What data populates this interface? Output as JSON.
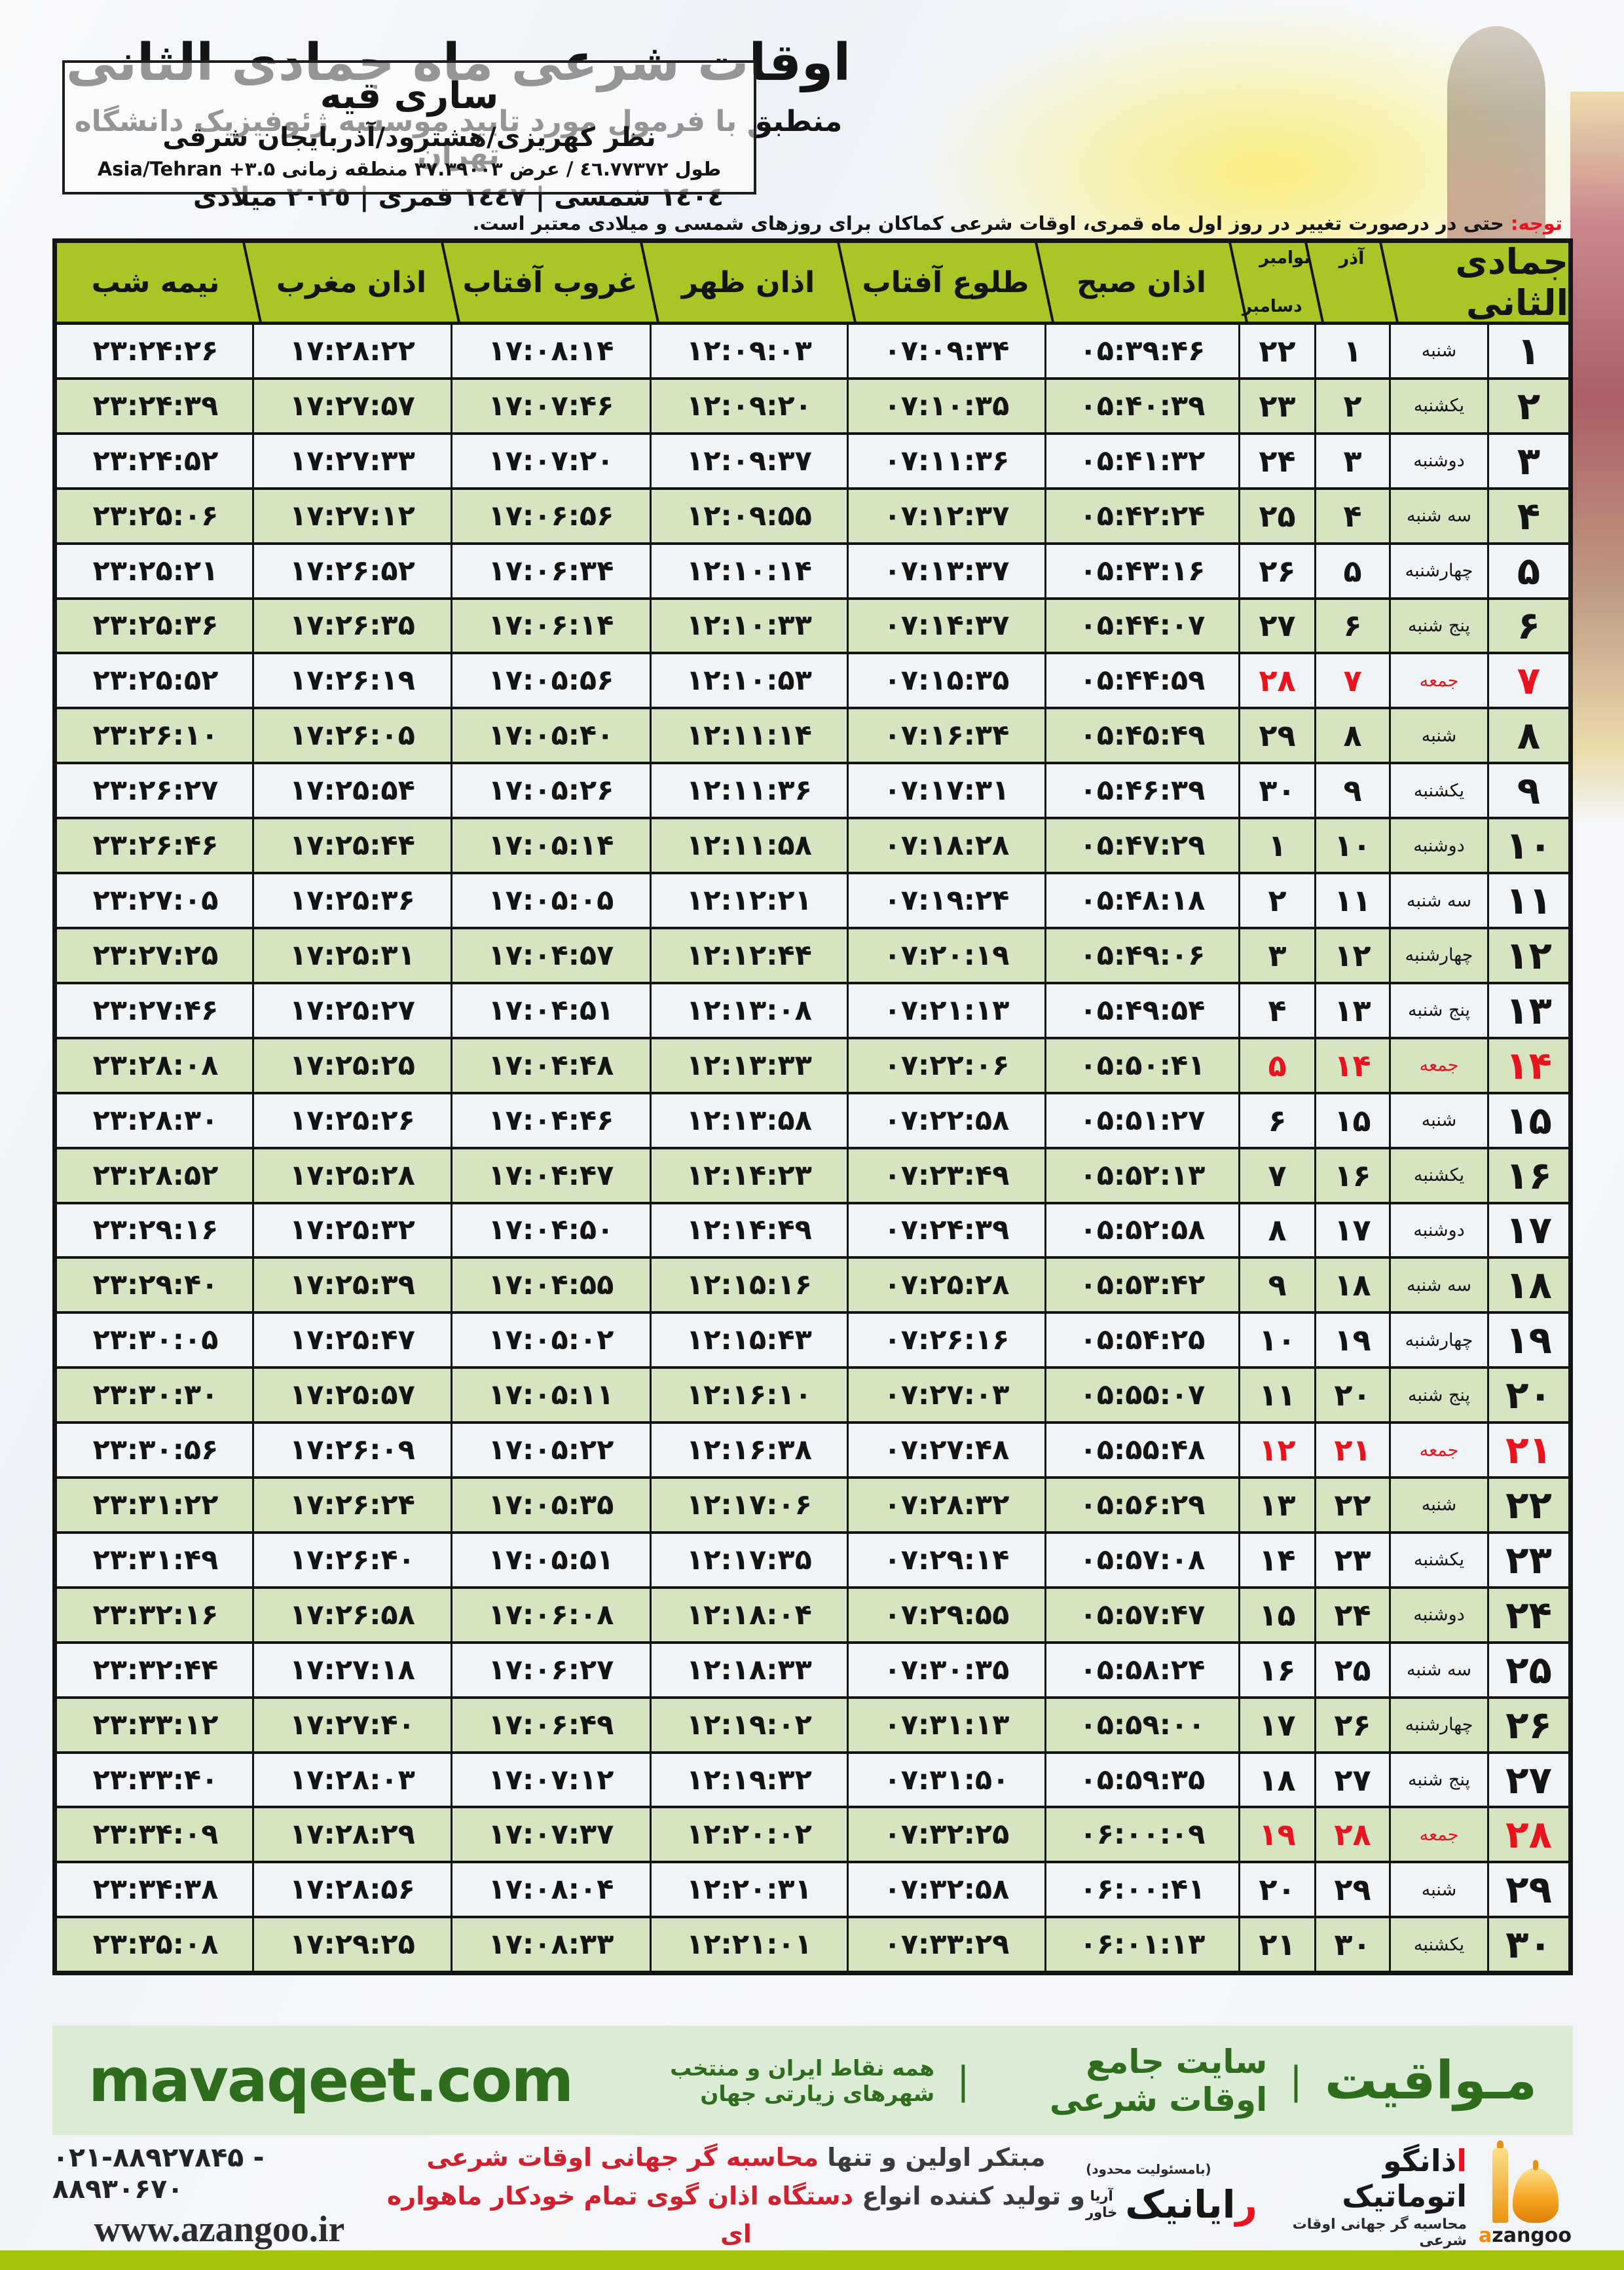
{
  "header": {
    "title": "اوقات شرعی ماه جمادی الثانی",
    "subtitle": "منطبق با فرمول مورد تایید موسسه ژئوفیزیک دانشگاه تهران",
    "date_line": "١٤٠٤ شمسی | ١٤٤٧ قمری | ٢٠٢٥ میلادی"
  },
  "location": {
    "name": "ساری قیه",
    "region": "نظر کهریزی/هشترود/آذربایجان شرقی",
    "coords": "طول ٤٦.٧٧٣٧٢ / عرض ۳۷.۳۹۰۰۳ منطقه زمانی ۳.۵+ Asia/Tehran"
  },
  "note": {
    "label": "توجه:",
    "text": "حتی در درصورت تغییر در روز اول ماه قمری، اوقات شرعی کماکان برای روزهای شمسی و میلادی معتبر است."
  },
  "table": {
    "headers": {
      "month": "جمادی الثانی",
      "azar": "آذر",
      "greg_top": "نوامبر",
      "greg_bottom": "دسامبر",
      "sobh": "اذان صبح",
      "tolu": "طلوع آفتاب",
      "zohr": "اذان ظهر",
      "ghorub": "غروب آفتاب",
      "maghreb": "اذان مغرب",
      "nimeshab": "نیمه شب"
    },
    "friday_name": "جمعه",
    "rows": [
      {
        "day": "1",
        "weekday": "شنبه",
        "azar": "1",
        "greg": "22",
        "sobh": "05:39:46",
        "tolu": "07:09:34",
        "zohr": "12:09:03",
        "ghorub": "17:08:14",
        "maghreb": "17:28:22",
        "nimeshab": "23:24:26"
      },
      {
        "day": "2",
        "weekday": "یکشنبه",
        "azar": "2",
        "greg": "23",
        "sobh": "05:40:39",
        "tolu": "07:10:35",
        "zohr": "12:09:20",
        "ghorub": "17:07:46",
        "maghreb": "17:27:57",
        "nimeshab": "23:24:39"
      },
      {
        "day": "3",
        "weekday": "دوشنبه",
        "azar": "3",
        "greg": "24",
        "sobh": "05:41:32",
        "tolu": "07:11:36",
        "zohr": "12:09:37",
        "ghorub": "17:07:20",
        "maghreb": "17:27:33",
        "nimeshab": "23:24:52"
      },
      {
        "day": "4",
        "weekday": "سه شنبه",
        "azar": "4",
        "greg": "25",
        "sobh": "05:42:24",
        "tolu": "07:12:37",
        "zohr": "12:09:55",
        "ghorub": "17:06:56",
        "maghreb": "17:27:12",
        "nimeshab": "23:25:06"
      },
      {
        "day": "5",
        "weekday": "چهارشنبه",
        "azar": "5",
        "greg": "26",
        "sobh": "05:43:16",
        "tolu": "07:13:37",
        "zohr": "12:10:14",
        "ghorub": "17:06:34",
        "maghreb": "17:26:52",
        "nimeshab": "23:25:21"
      },
      {
        "day": "6",
        "weekday": "پنج شنبه",
        "azar": "6",
        "greg": "27",
        "sobh": "05:44:07",
        "tolu": "07:14:37",
        "zohr": "12:10:33",
        "ghorub": "17:06:14",
        "maghreb": "17:26:35",
        "nimeshab": "23:25:36"
      },
      {
        "day": "7",
        "weekday": "جمعه",
        "azar": "7",
        "greg": "28",
        "sobh": "05:44:59",
        "tolu": "07:15:35",
        "zohr": "12:10:53",
        "ghorub": "17:05:56",
        "maghreb": "17:26:19",
        "nimeshab": "23:25:52"
      },
      {
        "day": "8",
        "weekday": "شنبه",
        "azar": "8",
        "greg": "29",
        "sobh": "05:45:49",
        "tolu": "07:16:34",
        "zohr": "12:11:14",
        "ghorub": "17:05:40",
        "maghreb": "17:26:05",
        "nimeshab": "23:26:10"
      },
      {
        "day": "9",
        "weekday": "یکشنبه",
        "azar": "9",
        "greg": "30",
        "sobh": "05:46:39",
        "tolu": "07:17:31",
        "zohr": "12:11:36",
        "ghorub": "17:05:26",
        "maghreb": "17:25:54",
        "nimeshab": "23:26:27"
      },
      {
        "day": "10",
        "weekday": "دوشنبه",
        "azar": "10",
        "greg": "1",
        "sobh": "05:47:29",
        "tolu": "07:18:28",
        "zohr": "12:11:58",
        "ghorub": "17:05:14",
        "maghreb": "17:25:44",
        "nimeshab": "23:26:46"
      },
      {
        "day": "11",
        "weekday": "سه شنبه",
        "azar": "11",
        "greg": "2",
        "sobh": "05:48:18",
        "tolu": "07:19:24",
        "zohr": "12:12:21",
        "ghorub": "17:05:05",
        "maghreb": "17:25:36",
        "nimeshab": "23:27:05"
      },
      {
        "day": "12",
        "weekday": "چهارشنبه",
        "azar": "12",
        "greg": "3",
        "sobh": "05:49:06",
        "tolu": "07:20:19",
        "zohr": "12:12:44",
        "ghorub": "17:04:57",
        "maghreb": "17:25:31",
        "nimeshab": "23:27:25"
      },
      {
        "day": "13",
        "weekday": "پنج شنبه",
        "azar": "13",
        "greg": "4",
        "sobh": "05:49:54",
        "tolu": "07:21:13",
        "zohr": "12:13:08",
        "ghorub": "17:04:51",
        "maghreb": "17:25:27",
        "nimeshab": "23:27:46"
      },
      {
        "day": "14",
        "weekday": "جمعه",
        "azar": "14",
        "greg": "5",
        "sobh": "05:50:41",
        "tolu": "07:22:06",
        "zohr": "12:13:33",
        "ghorub": "17:04:48",
        "maghreb": "17:25:25",
        "nimeshab": "23:28:08"
      },
      {
        "day": "15",
        "weekday": "شنبه",
        "azar": "15",
        "greg": "6",
        "sobh": "05:51:27",
        "tolu": "07:22:58",
        "zohr": "12:13:58",
        "ghorub": "17:04:46",
        "maghreb": "17:25:26",
        "nimeshab": "23:28:30"
      },
      {
        "day": "16",
        "weekday": "یکشنبه",
        "azar": "16",
        "greg": "7",
        "sobh": "05:52:13",
        "tolu": "07:23:49",
        "zohr": "12:14:23",
        "ghorub": "17:04:47",
        "maghreb": "17:25:28",
        "nimeshab": "23:28:52"
      },
      {
        "day": "17",
        "weekday": "دوشنبه",
        "azar": "17",
        "greg": "8",
        "sobh": "05:52:58",
        "tolu": "07:24:39",
        "zohr": "12:14:49",
        "ghorub": "17:04:50",
        "maghreb": "17:25:32",
        "nimeshab": "23:29:16"
      },
      {
        "day": "18",
        "weekday": "سه شنبه",
        "azar": "18",
        "greg": "9",
        "sobh": "05:53:42",
        "tolu": "07:25:28",
        "zohr": "12:15:16",
        "ghorub": "17:04:55",
        "maghreb": "17:25:39",
        "nimeshab": "23:29:40"
      },
      {
        "day": "19",
        "weekday": "چهارشنبه",
        "azar": "19",
        "greg": "10",
        "sobh": "05:54:25",
        "tolu": "07:26:16",
        "zohr": "12:15:43",
        "ghorub": "17:05:02",
        "maghreb": "17:25:47",
        "nimeshab": "23:30:05"
      },
      {
        "day": "20",
        "weekday": "پنج شنبه",
        "azar": "20",
        "greg": "11",
        "sobh": "05:55:07",
        "tolu": "07:27:03",
        "zohr": "12:16:10",
        "ghorub": "17:05:11",
        "maghreb": "17:25:57",
        "nimeshab": "23:30:30"
      },
      {
        "day": "21",
        "weekday": "جمعه",
        "azar": "21",
        "greg": "12",
        "sobh": "05:55:48",
        "tolu": "07:27:48",
        "zohr": "12:16:38",
        "ghorub": "17:05:22",
        "maghreb": "17:26:09",
        "nimeshab": "23:30:56"
      },
      {
        "day": "22",
        "weekday": "شنبه",
        "azar": "22",
        "greg": "13",
        "sobh": "05:56:29",
        "tolu": "07:28:32",
        "zohr": "12:17:06",
        "ghorub": "17:05:35",
        "maghreb": "17:26:24",
        "nimeshab": "23:31:22"
      },
      {
        "day": "23",
        "weekday": "یکشنبه",
        "azar": "23",
        "greg": "14",
        "sobh": "05:57:08",
        "tolu": "07:29:14",
        "zohr": "12:17:35",
        "ghorub": "17:05:51",
        "maghreb": "17:26:40",
        "nimeshab": "23:31:49"
      },
      {
        "day": "24",
        "weekday": "دوشنبه",
        "azar": "24",
        "greg": "15",
        "sobh": "05:57:47",
        "tolu": "07:29:55",
        "zohr": "12:18:04",
        "ghorub": "17:06:08",
        "maghreb": "17:26:58",
        "nimeshab": "23:32:16"
      },
      {
        "day": "25",
        "weekday": "سه شنبه",
        "azar": "25",
        "greg": "16",
        "sobh": "05:58:24",
        "tolu": "07:30:35",
        "zohr": "12:18:33",
        "ghorub": "17:06:27",
        "maghreb": "17:27:18",
        "nimeshab": "23:32:44"
      },
      {
        "day": "26",
        "weekday": "چهارشنبه",
        "azar": "26",
        "greg": "17",
        "sobh": "05:59:00",
        "tolu": "07:31:13",
        "zohr": "12:19:02",
        "ghorub": "17:06:49",
        "maghreb": "17:27:40",
        "nimeshab": "23:33:12"
      },
      {
        "day": "27",
        "weekday": "پنج شنبه",
        "azar": "27",
        "greg": "18",
        "sobh": "05:59:35",
        "tolu": "07:31:50",
        "zohr": "12:19:32",
        "ghorub": "17:07:12",
        "maghreb": "17:28:03",
        "nimeshab": "23:33:40"
      },
      {
        "day": "28",
        "weekday": "جمعه",
        "azar": "28",
        "greg": "19",
        "sobh": "06:00:09",
        "tolu": "07:32:25",
        "zohr": "12:20:02",
        "ghorub": "17:07:37",
        "maghreb": "17:28:29",
        "nimeshab": "23:34:09"
      },
      {
        "day": "29",
        "weekday": "شنبه",
        "azar": "29",
        "greg": "20",
        "sobh": "06:00:41",
        "tolu": "07:32:58",
        "zohr": "12:20:31",
        "ghorub": "17:08:04",
        "maghreb": "17:28:56",
        "nimeshab": "23:34:38"
      },
      {
        "day": "30",
        "weekday": "یکشنبه",
        "azar": "30",
        "greg": "21",
        "sobh": "06:01:13",
        "tolu": "07:33:29",
        "zohr": "12:21:01",
        "ghorub": "17:08:33",
        "maghreb": "17:29:25",
        "nimeshab": "23:35:08"
      }
    ]
  },
  "mavaqeet_band": {
    "brand": "مـواقیت",
    "separator": "|",
    "tagline1": "سایت جامع اوقات شرعی",
    "tagline2": "همه نقاط ایران و منتخب شهرهای زیارتی جهان",
    "url": "mavaqeet.com"
  },
  "bottom": {
    "azangoo": {
      "name": "اذانگو اتوماتیک",
      "tagline": "محاسبه گر جهانی اوقات شرعی",
      "latin": "azangoo"
    },
    "rayanik": {
      "name": "رایانیک",
      "sub1": "آریا",
      "sub2": "خاور",
      "note": "(بامسئولیت محدود)"
    },
    "promo": {
      "line1_dark": "مبتکر اولین و تنها",
      "line1_red": "محاسبه گر جهانی اوقات شرعی",
      "line2_dark": "و تولید کننده انواع",
      "line2_red": "دستگاه اذان گوی تمام خودکار ماهواره ای"
    },
    "phones": "۰۲۱-۸۸۹۲۷۸۴۵ - ۸۸۹۳۰۶۷۰",
    "website": "www.azangoo.ir"
  },
  "colors": {
    "header_green": "#a9c526",
    "row_green": "#d7e4c2",
    "row_light": "#f1f4f7",
    "friday_red": "#e8131c",
    "band_bg": "#daecd4",
    "band_text": "#2e6d1e",
    "bottom_strip": "#a5c50b"
  }
}
